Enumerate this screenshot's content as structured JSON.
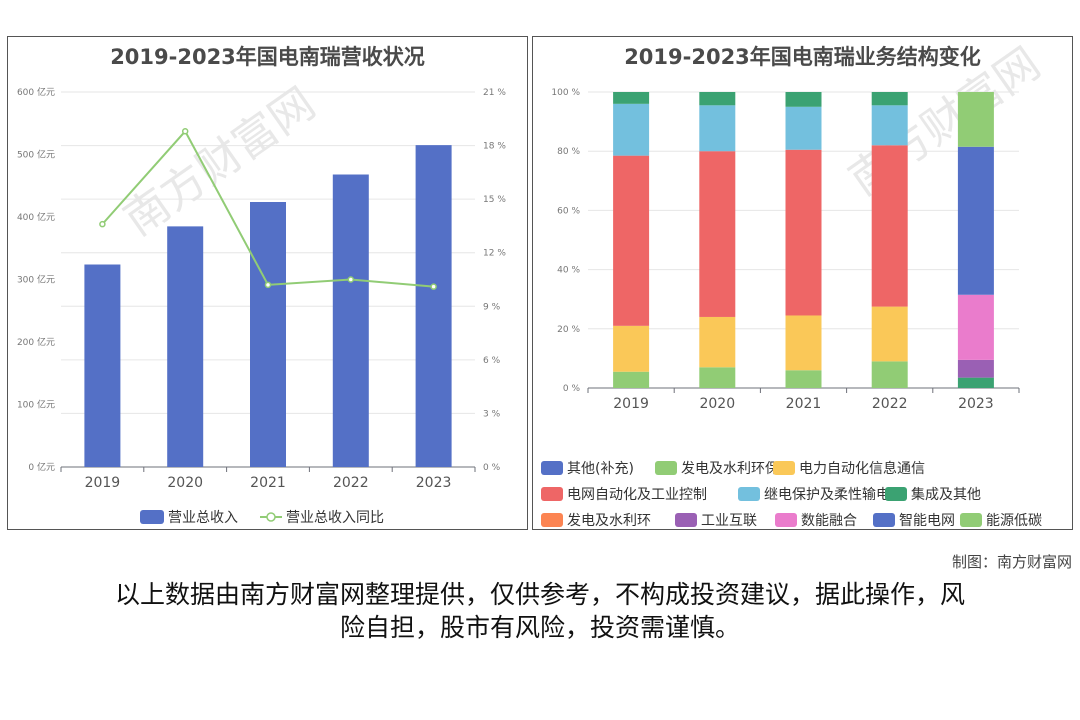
{
  "left_chart": {
    "title": "2019-2023年国电南瑞营收状况",
    "left_ticks": [
      "0 亿元",
      "100 亿元",
      "200 亿元",
      "300 亿元",
      "400 亿元",
      "500 亿元",
      "600 亿元"
    ],
    "right_ticks": [
      "0 %",
      "3 %",
      "6 %",
      "9 %",
      "12 %",
      "15 %",
      "18 %",
      "21 %"
    ],
    "legend": [
      "营业总收入",
      "营业总收入同比"
    ]
  },
  "right_chart": {
    "title": "2019-2023年国电南瑞业务结构变化",
    "y_ticks": [
      "0 %",
      "20 %",
      "40 %",
      "60 %",
      "80 %",
      "100 %"
    ],
    "legend": [
      "其他(补充)",
      "发电及水利环保",
      "电力自动化信息通信",
      "电网自动化及工业控制",
      "继电保护及柔性输电",
      "集成及其他",
      "发电及水利环",
      "工业互联",
      "数能融合",
      "智能电网",
      "能源低碳"
    ]
  },
  "chart_data": [
    {
      "type": "bar",
      "title": "2019-2023年国电南瑞营收状况",
      "categories": [
        "2019",
        "2020",
        "2021",
        "2022",
        "2023"
      ],
      "series": [
        {
          "name": "营业总收入",
          "type": "bar",
          "axis": "left",
          "unit": "亿元",
          "values": [
            324,
            385,
            424,
            468,
            515
          ],
          "color": "#5470c6"
        },
        {
          "name": "营业总收入同比",
          "type": "line",
          "axis": "right",
          "unit": "%",
          "values": [
            13.6,
            18.8,
            10.2,
            10.5,
            10.1
          ],
          "color": "#91cc75"
        }
      ],
      "ylim_left": [
        0,
        600
      ],
      "ylim_right": [
        0,
        21
      ],
      "grid": true,
      "legend_position": "bottom"
    },
    {
      "type": "bar",
      "stacked": true,
      "title": "2019-2023年国电南瑞业务结构变化",
      "categories": [
        "2019",
        "2020",
        "2021",
        "2022",
        "2023"
      ],
      "ylim": [
        0,
        100
      ],
      "unit": "%",
      "series": [
        {
          "name": "其他(补充)",
          "color": "#5470c6",
          "values": [
            0,
            0,
            0,
            0,
            0
          ]
        },
        {
          "name": "发电及水利环保",
          "color": "#91cc75",
          "values": [
            5.5,
            7,
            6,
            9,
            0
          ]
        },
        {
          "name": "电力自动化信息通信",
          "color": "#fac858",
          "values": [
            15.5,
            17,
            18.5,
            18.5,
            0
          ]
        },
        {
          "name": "电网自动化及工业控制",
          "color": "#ee6666",
          "values": [
            57.5,
            56,
            56,
            54.5,
            0
          ]
        },
        {
          "name": "继电保护及柔性输电",
          "color": "#73c0de",
          "values": [
            17.5,
            15.5,
            14.5,
            13.5,
            0
          ]
        },
        {
          "name": "集成及其他",
          "color": "#3ba272",
          "values": [
            4,
            4.5,
            5,
            4.5,
            0
          ]
        },
        {
          "name": "发电及水利环",
          "color": "#fc8452",
          "values": [
            0,
            0,
            0,
            0,
            0
          ]
        },
        {
          "name": "工业互联",
          "color": "#9a60b4",
          "values": [
            0,
            0,
            0,
            0,
            6
          ]
        },
        {
          "name": "数能融合",
          "color": "#ea7ccc",
          "values": [
            0,
            0,
            0,
            0,
            22
          ]
        },
        {
          "name": "智能电网",
          "color": "#5470c6",
          "values": [
            0,
            0,
            0,
            0,
            50
          ]
        },
        {
          "name": "能源低碳",
          "color": "#91cc75",
          "values": [
            0,
            0,
            0,
            0,
            18.5
          ]
        }
      ],
      "extra_segments_2023": [
        {
          "color": "#3ba272",
          "value": 3.5
        }
      ],
      "grid": true,
      "legend_position": "bottom"
    }
  ],
  "footer": {
    "credit": "制图：南方财富网",
    "disclaimer_line1": "以上数据由南方财富网整理提供，仅供参考，不构成投资建议，据此操作，风",
    "disclaimer_line2": "险自担，股市有风险，投资需谨慎。"
  }
}
